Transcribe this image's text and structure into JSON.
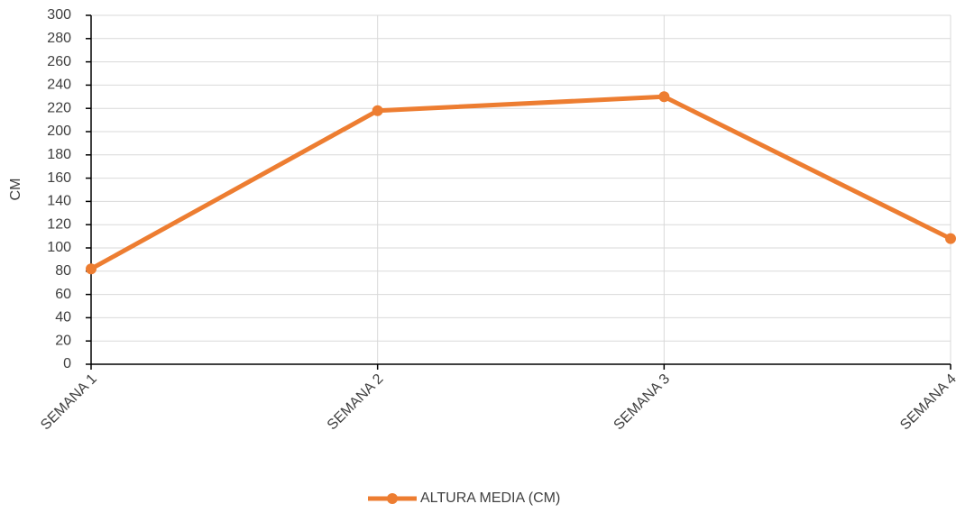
{
  "chart_data": {
    "type": "line",
    "ylabel": "CM",
    "categories": [
      "SEMANA 1",
      "SEMANA 2",
      "SEMANA 3",
      "SEMANA 4"
    ],
    "series": [
      {
        "name": "ALTURA MEDIA (CM)",
        "color": "#ed7d31",
        "values": [
          82,
          218,
          230,
          108
        ]
      }
    ],
    "ylim": [
      0,
      300
    ],
    "yticks": [
      0,
      20,
      40,
      60,
      80,
      100,
      120,
      140,
      160,
      180,
      200,
      220,
      240,
      260,
      280,
      300
    ],
    "grid": true,
    "legend": "bottom"
  }
}
